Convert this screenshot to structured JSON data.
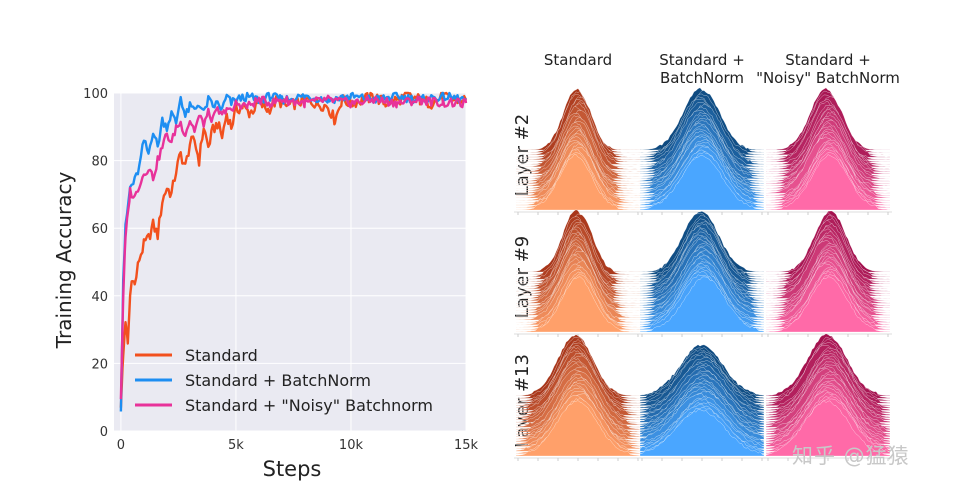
{
  "chart_data": [
    {
      "type": "line",
      "title": "",
      "xlabel": "Steps",
      "ylabel": "Training Accuracy",
      "xlim": [
        -300,
        15000
      ],
      "ylim": [
        0,
        100
      ],
      "xticks": [
        0,
        5000,
        10000,
        15000
      ],
      "xtick_labels": [
        "0",
        "5k",
        "10k",
        "15k"
      ],
      "yticks": [
        0,
        20,
        40,
        60,
        80,
        100
      ],
      "ytick_labels": [
        "0",
        "20",
        "40",
        "60",
        "80",
        "100"
      ],
      "grid": true,
      "legend_position": "bottom-left",
      "series": [
        {
          "name": "Standard",
          "color": "#f2501d",
          "x": [
            0,
            100,
            200,
            300,
            400,
            500,
            600,
            800,
            1000,
            1200,
            1400,
            1600,
            1800,
            2000,
            2200,
            2400,
            2600,
            2800,
            3000,
            3200,
            3400,
            3600,
            3800,
            4000,
            4200,
            4400,
            4600,
            4800,
            5000,
            5300,
            5600,
            6000,
            6400,
            6800,
            7200,
            7600,
            8000,
            8500,
            9000,
            9300,
            9600,
            10000,
            10500,
            11000,
            11500,
            12000,
            12500,
            13000,
            13500,
            14000,
            14500,
            15000
          ],
          "values": [
            8,
            22,
            33,
            25,
            40,
            46,
            43,
            51,
            55,
            57,
            61,
            58,
            68,
            72,
            70,
            77,
            82,
            78,
            85,
            86,
            80,
            90,
            84,
            89,
            91,
            87,
            94,
            90,
            95,
            96,
            94,
            97,
            95,
            98,
            96,
            97,
            98,
            97,
            96,
            92,
            98,
            97,
            98,
            99,
            97,
            98,
            99,
            98,
            97,
            99,
            98,
            98
          ]
        },
        {
          "name": "Standard + BatchNorm",
          "color": "#1d8ef2",
          "x": [
            0,
            100,
            200,
            300,
            400,
            600,
            800,
            1000,
            1200,
            1400,
            1600,
            1800,
            2000,
            2200,
            2400,
            2600,
            2800,
            3000,
            3200,
            3400,
            3600,
            3800,
            4000,
            4200,
            4400,
            4600,
            4800,
            5000,
            5500,
            6000,
            6500,
            7000,
            8000,
            9000,
            10000,
            11000,
            12000,
            13000,
            14000,
            15000
          ],
          "values": [
            7,
            45,
            60,
            66,
            72,
            74,
            78,
            86,
            82,
            89,
            84,
            92,
            90,
            94,
            91,
            99,
            93,
            96,
            95,
            97,
            94,
            98,
            96,
            97,
            95,
            99,
            97,
            98,
            99,
            98,
            99,
            98,
            99,
            98,
            99,
            98,
            99,
            98,
            99,
            98
          ]
        },
        {
          "name": "Standard + \"Noisy\" Batchnorm",
          "color": "#e8329a",
          "x": [
            0,
            100,
            200,
            300,
            400,
            600,
            800,
            1000,
            1200,
            1400,
            1600,
            1800,
            2000,
            2200,
            2400,
            2600,
            2800,
            3000,
            3200,
            3400,
            3600,
            3800,
            4000,
            4200,
            4400,
            4600,
            4800,
            5000,
            5500,
            6000,
            6500,
            7000,
            8000,
            9000,
            10000,
            11000,
            12000,
            13000,
            14000,
            15000
          ],
          "values": [
            10,
            40,
            57,
            64,
            71,
            69,
            73,
            76,
            78,
            75,
            80,
            84,
            88,
            85,
            90,
            91,
            88,
            92,
            89,
            93,
            91,
            94,
            92,
            95,
            93,
            96,
            94,
            97,
            96,
            98,
            97,
            98,
            97,
            98,
            97,
            98,
            97,
            98,
            97,
            97
          ]
        }
      ]
    },
    {
      "type": "ridgeline-grid",
      "column_titles": [
        "Standard",
        "Standard +\nBatchNorm",
        "Standard +\n\"Noisy\" BatchNorm"
      ],
      "row_labels": [
        "Layer #2",
        "Layer #9",
        "Layer #13"
      ],
      "column_colors": [
        {
          "dark": "#a8361a",
          "light": "#ffa06a"
        },
        {
          "dark": "#0e4a80",
          "light": "#4aa6ff"
        },
        {
          "dark": "#a4124f",
          "light": "#ff6aa8"
        }
      ]
    }
  ],
  "watermark": "知乎 @猛猿"
}
